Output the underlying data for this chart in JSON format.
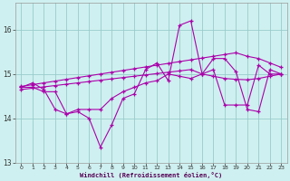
{
  "xlabel": "Windchill (Refroidissement éolien,°C)",
  "background_color": "#cff0f0",
  "line_color": "#aa00aa",
  "grid_color": "#99cccc",
  "xlim": [
    -0.5,
    23.5
  ],
  "ylim": [
    13.0,
    16.6
  ],
  "yticks": [
    13,
    14,
    15,
    16
  ],
  "xticks": [
    0,
    1,
    2,
    3,
    4,
    5,
    6,
    7,
    8,
    9,
    10,
    11,
    12,
    13,
    14,
    15,
    16,
    17,
    18,
    19,
    20,
    21,
    22,
    23
  ],
  "s1": [
    14.7,
    14.8,
    14.65,
    14.2,
    14.1,
    14.15,
    14.0,
    13.35,
    13.85,
    14.45,
    14.55,
    15.1,
    15.25,
    14.85,
    16.1,
    16.2,
    15.0,
    15.35,
    15.35,
    15.05,
    14.2,
    14.15,
    15.1,
    15.0
  ],
  "s2": [
    14.7,
    14.7,
    14.6,
    14.6,
    14.1,
    14.2,
    14.2,
    14.2,
    14.45,
    14.6,
    14.7,
    14.8,
    14.85,
    15.0,
    14.95,
    14.9,
    15.0,
    15.1,
    14.3,
    14.3,
    14.3,
    15.2,
    15.0,
    15.0
  ],
  "trend_lo": [
    14.65,
    14.68,
    14.71,
    14.74,
    14.77,
    14.8,
    14.83,
    14.86,
    14.89,
    14.92,
    14.95,
    14.98,
    15.01,
    15.04,
    15.07,
    15.1,
    15.0,
    14.95,
    14.9,
    14.88,
    14.87,
    14.9,
    14.95,
    15.0
  ],
  "trend_hi": [
    14.72,
    14.76,
    14.8,
    14.84,
    14.88,
    14.92,
    14.96,
    15.0,
    15.04,
    15.08,
    15.12,
    15.16,
    15.2,
    15.24,
    15.28,
    15.32,
    15.36,
    15.4,
    15.44,
    15.48,
    15.4,
    15.35,
    15.25,
    15.15
  ]
}
